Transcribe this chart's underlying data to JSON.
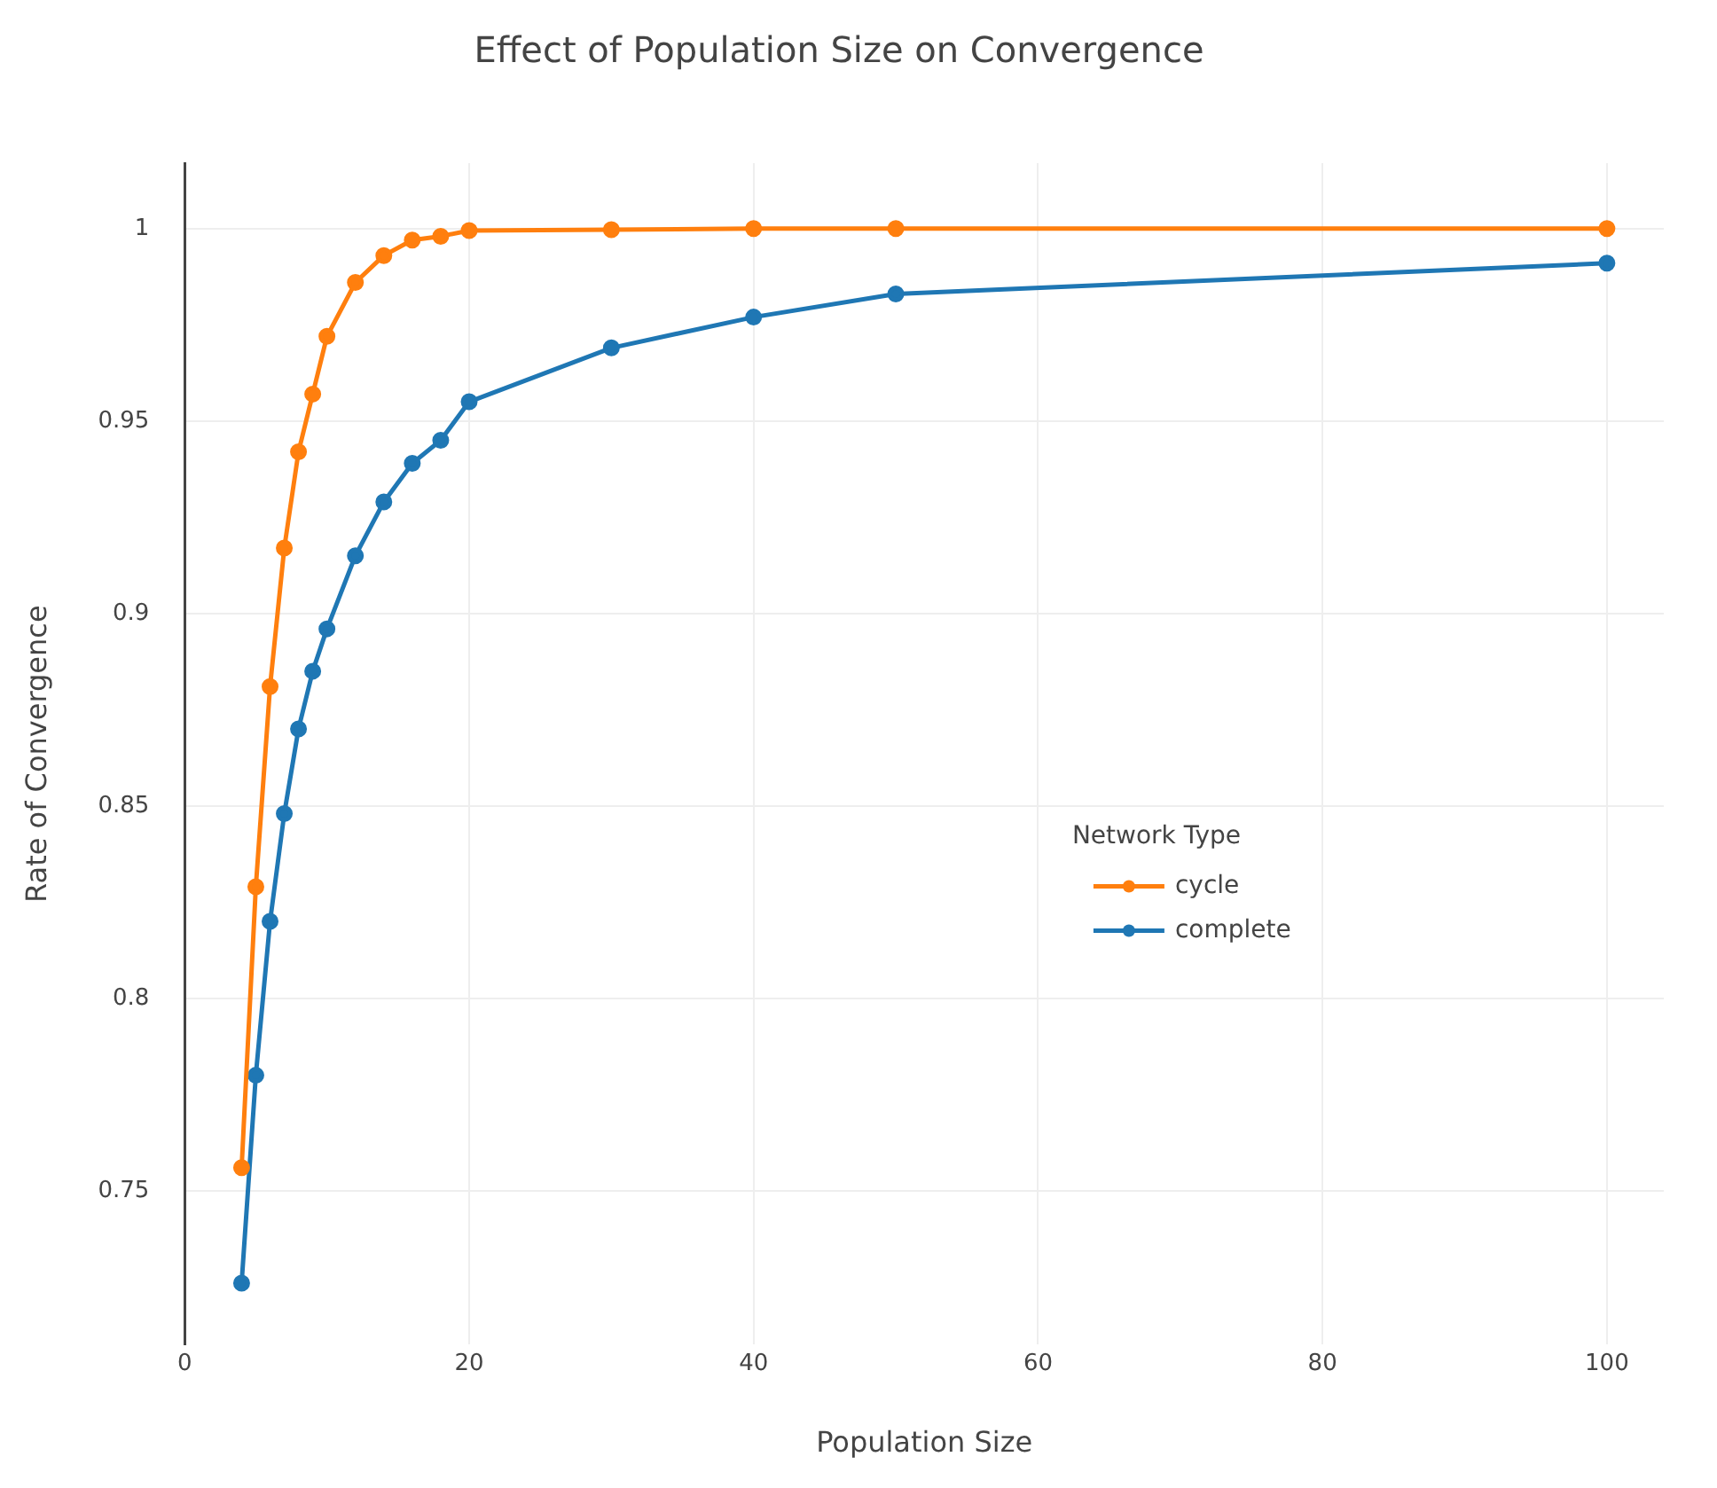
{
  "chart_data": {
    "type": "line",
    "title": "Effect of Population Size on Convergence",
    "xlabel": "Population Size",
    "ylabel": "Rate of Convergence",
    "legend_title": "Network Type",
    "x": [
      4,
      5,
      6,
      7,
      8,
      9,
      10,
      12,
      14,
      16,
      18,
      20,
      30,
      40,
      50,
      100
    ],
    "series": [
      {
        "name": "cycle",
        "color": "#ff7f0e",
        "values": [
          0.756,
          0.829,
          0.881,
          0.917,
          0.942,
          0.957,
          0.972,
          0.986,
          0.993,
          0.997,
          0.998,
          0.9995,
          0.9997,
          1.0,
          1.0,
          1.0
        ]
      },
      {
        "name": "complete",
        "color": "#1f77b4",
        "values": [
          0.726,
          0.78,
          0.82,
          0.848,
          0.87,
          0.885,
          0.896,
          0.915,
          0.929,
          0.939,
          0.945,
          0.955,
          0.969,
          0.977,
          0.983,
          0.991
        ]
      }
    ],
    "xlim": [
      0,
      104
    ],
    "xticks": [
      0,
      20,
      40,
      60,
      80,
      100
    ],
    "ylim": [
      0.71,
      1.017
    ],
    "yticks": [
      0.75,
      0.8,
      0.85,
      0.9,
      0.95,
      1
    ],
    "grid": true,
    "legend": "right",
    "marker": "circle",
    "line_style": "solid"
  }
}
